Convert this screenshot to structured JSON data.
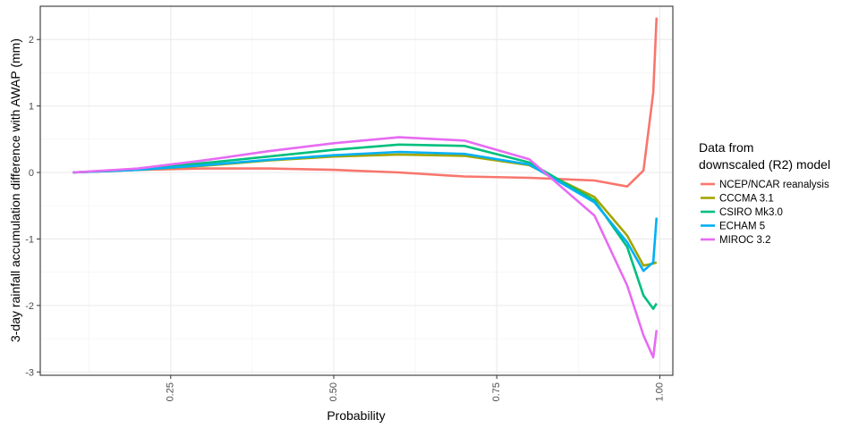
{
  "chart_data": {
    "type": "line",
    "title": "",
    "xlabel": "Probability",
    "ylabel": "3-day rainfall accumulation difference with AWAP (mm)",
    "xlim": [
      0.05,
      1.02
    ],
    "ylim": [
      -3.05,
      2.5
    ],
    "x_ticks": [
      0.25,
      0.5,
      0.75,
      1.0
    ],
    "x_tick_labels": [
      "0.25",
      "0.50",
      "0.75",
      "1.00"
    ],
    "y_ticks": [
      -3,
      -2,
      -1,
      0,
      1,
      2
    ],
    "y_tick_labels": [
      "-3",
      "-2",
      "-1",
      "0",
      "1",
      "2"
    ],
    "grid": true,
    "legend": {
      "title_line1": "Data from",
      "title_line2": "downscaled (R2) model",
      "placement": "right"
    },
    "series": [
      {
        "name": "NCEP/NCAR reanalysis",
        "color": "#F8766D",
        "x": [
          0.1,
          0.2,
          0.3,
          0.4,
          0.5,
          0.6,
          0.7,
          0.8,
          0.9,
          0.95,
          0.975,
          0.99,
          0.995
        ],
        "y": [
          0.0,
          0.04,
          0.06,
          0.06,
          0.04,
          0.0,
          -0.06,
          -0.08,
          -0.12,
          -0.21,
          0.03,
          1.2,
          2.33
        ]
      },
      {
        "name": "CCCMA 3.1",
        "color": "#A3A500",
        "x": [
          0.1,
          0.2,
          0.3,
          0.4,
          0.5,
          0.6,
          0.7,
          0.8,
          0.9,
          0.95,
          0.975,
          0.99,
          0.995
        ],
        "y": [
          0.0,
          0.04,
          0.1,
          0.18,
          0.24,
          0.27,
          0.25,
          0.11,
          -0.37,
          -0.95,
          -1.4,
          -1.37,
          -1.35
        ]
      },
      {
        "name": "CSIRO Mk3.0",
        "color": "#00BF7D",
        "x": [
          0.1,
          0.2,
          0.3,
          0.4,
          0.5,
          0.6,
          0.7,
          0.8,
          0.9,
          0.95,
          0.975,
          0.99,
          0.995
        ],
        "y": [
          0.0,
          0.05,
          0.14,
          0.24,
          0.34,
          0.42,
          0.4,
          0.15,
          -0.42,
          -1.12,
          -1.85,
          -2.05,
          -1.97
        ]
      },
      {
        "name": "ECHAM 5",
        "color": "#00B0F6",
        "x": [
          0.1,
          0.2,
          0.3,
          0.4,
          0.5,
          0.6,
          0.7,
          0.8,
          0.9,
          0.95,
          0.975,
          0.99,
          0.995
        ],
        "y": [
          0.0,
          0.04,
          0.11,
          0.19,
          0.26,
          0.31,
          0.28,
          0.12,
          -0.45,
          -1.05,
          -1.48,
          -1.35,
          -0.68
        ]
      },
      {
        "name": "MIROC 3.2",
        "color": "#E76BF3",
        "x": [
          0.1,
          0.2,
          0.3,
          0.4,
          0.5,
          0.6,
          0.7,
          0.8,
          0.9,
          0.95,
          0.975,
          0.99,
          0.995
        ],
        "y": [
          0.0,
          0.06,
          0.18,
          0.32,
          0.44,
          0.53,
          0.48,
          0.2,
          -0.65,
          -1.7,
          -2.45,
          -2.78,
          -2.37
        ]
      }
    ]
  }
}
